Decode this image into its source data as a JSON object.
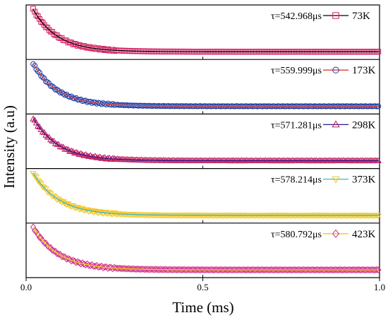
{
  "chart_data": {
    "type": "scatter",
    "layout": "stacked-panels",
    "xlabel": "Time (ms)",
    "ylabel": "Intensity (a.u)",
    "xlim": [
      0,
      1.0
    ],
    "xticks": [
      {
        "value": 0.0,
        "label": "0.0"
      },
      {
        "value": 0.5,
        "label": "0.5"
      },
      {
        "value": 1.0,
        "label": "1.0"
      }
    ],
    "grid": false,
    "legend_position": "top-right of each panel",
    "panels": [
      {
        "annotation": "τ=542.968μs",
        "series_name": "73K",
        "marker": "square",
        "marker_color": "#d81b60",
        "fit_color": "#000000",
        "tau_us": 542.968
      },
      {
        "annotation": "τ=559.999μs",
        "series_name": "173K",
        "marker": "circle",
        "marker_color": "#1a3ea8",
        "fit_color": "#e53935",
        "tau_us": 559.999
      },
      {
        "annotation": "τ=571.281μs",
        "series_name": "298K",
        "marker": "triangle-up",
        "marker_color": "#c2185b",
        "fit_color": "#2a1a8c",
        "tau_us": 571.281
      },
      {
        "annotation": "τ=578.214μs",
        "series_name": "373K",
        "marker": "triangle-down",
        "marker_color": "#f5c518",
        "fit_color": "#3ab8d8",
        "tau_us": 578.214
      },
      {
        "annotation": "τ=580.792μs",
        "series_name": "423K",
        "marker": "diamond",
        "marker_color": "#d0308a",
        "fit_color": "#f0d000",
        "tau_us": 580.792
      }
    ]
  }
}
